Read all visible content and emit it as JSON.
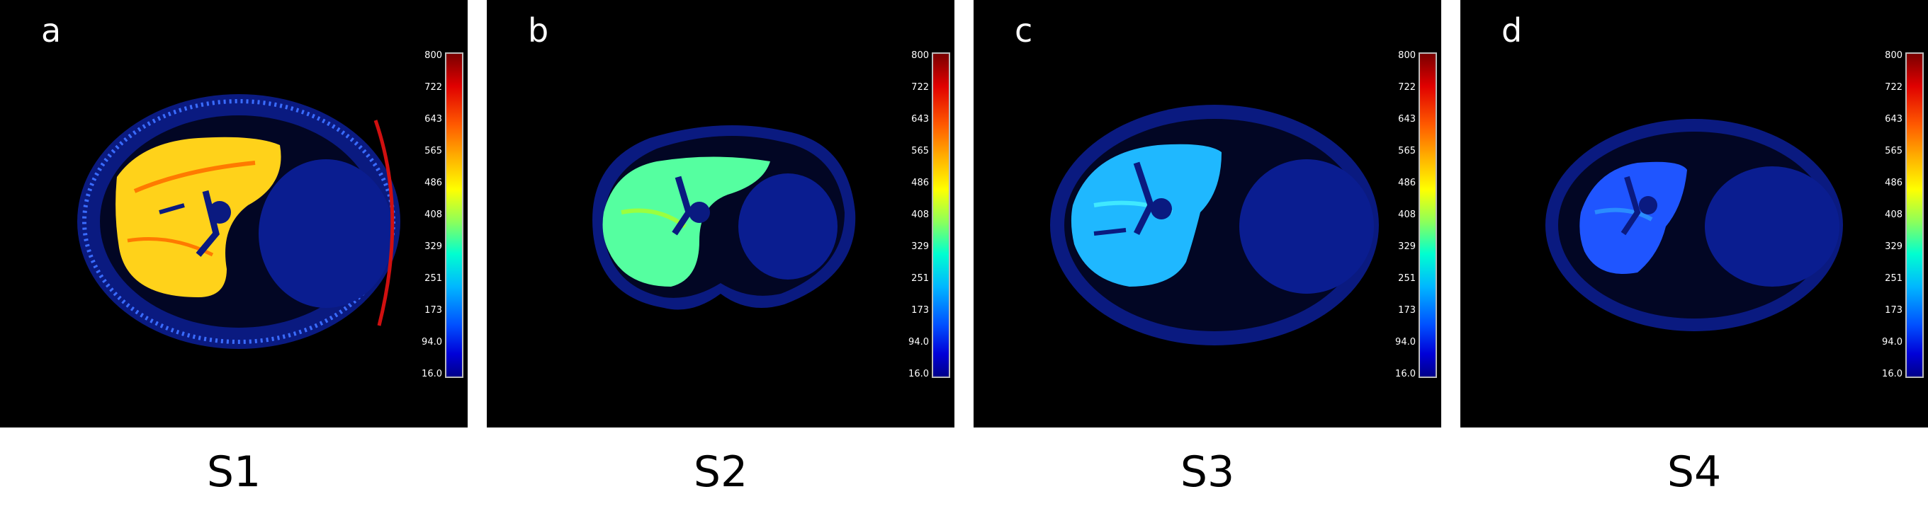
{
  "colorbar_ticks": [
    "800",
    "722",
    "643",
    "565",
    "486",
    "408",
    "329",
    "251",
    "173",
    "94.0",
    "16.0"
  ],
  "panels": [
    {
      "letter": "a",
      "caption": "S1",
      "liver_color": "#ffd21a",
      "liver_accent": "#ff7a00"
    },
    {
      "letter": "b",
      "caption": "S2",
      "liver_color": "#55ffa0",
      "liver_accent": "#9aff40"
    },
    {
      "letter": "c",
      "caption": "S3",
      "liver_color": "#1fb8ff",
      "liver_accent": "#40e8ff"
    },
    {
      "letter": "d",
      "caption": "S4",
      "liver_color": "#1f55ff",
      "liver_accent": "#2a8cff"
    }
  ]
}
